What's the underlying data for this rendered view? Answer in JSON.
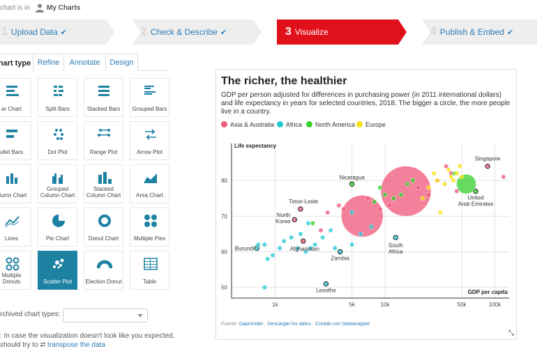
{
  "breadcrumb": {
    "prefix": "chart is in",
    "folder": "My Charts"
  },
  "steps": [
    {
      "num": "1",
      "label": "Upload Data",
      "done": "✔"
    },
    {
      "num": "2",
      "label": "Check & Describe",
      "done": "✔"
    },
    {
      "num": "3",
      "label": "Visualize"
    },
    {
      "num": "4",
      "label": "Publish & Embed",
      "done": "✔"
    }
  ],
  "tabs": [
    "Chart type",
    "Refine",
    "Annotate",
    "Design"
  ],
  "chart_types": [
    "Bar Chart",
    "Split Bars",
    "Stacked Bars",
    "Grouped Bars",
    "Bullet Bars",
    "Dot Plot",
    "Range Plot",
    "Arrow Plot",
    "Column Chart",
    "Grouped Column Chart",
    "Stacked Column Chart",
    "Area Chart",
    "Lines",
    "Pie Chart",
    "Donut Chart",
    "Multiple Pies",
    "Multiple Donuts",
    "Scatter Plot",
    "Election Donut",
    "Table"
  ],
  "tile_labels": [
    "ar Chart",
    "Split Bars",
    "Stacked Bars",
    "Grouped Bars",
    "ullet Bars",
    "Dot Plot",
    "Range Plot",
    "Arrow Plot",
    "olumn Chart",
    "Grouped\nColumn Chart",
    "Stacked\nColumn Chart",
    "Area Chart",
    "Lines",
    "Pie Chart",
    "Donut Chart",
    "Multiple Pies",
    "Multiple\nDonuts",
    "Scatter Plot",
    "Election Donut",
    "Table"
  ],
  "selected_chart_type": "Scatter Plot",
  "archived": {
    "label": "rchived chart types:",
    "value": ""
  },
  "hint": {
    "line1": ": In case the visualization doesn't look like you expected,",
    "line2_prefix": "should try to ",
    "link": "transpose the data"
  },
  "colors": {
    "accent": "#e1111b",
    "link": "#2a7bb6",
    "asia": "#f0577a",
    "africa": "#22c7d6",
    "namerica": "#34d02c",
    "europe": "#f5e30f"
  },
  "chart_data": {
    "type": "scatter",
    "title": "The richer, the healthier",
    "subtitle": "GDP per person adjusted for differences in purchasing power (in 2011 international dollars) and life expectancy in years for selected countries, 2018. The bigger a circle, the more people live in a country.",
    "xlabel": "GDP per capita",
    "ylabel": "Life expectancy",
    "xscale": "log",
    "xlim": [
      400,
      135000
    ],
    "ylim": [
      47,
      90
    ],
    "xticks": [
      1000,
      5000,
      10000,
      50000,
      100000
    ],
    "xtick_labels": [
      "1k",
      "5k",
      "10k",
      "50k",
      "100k"
    ],
    "yticks": [
      50,
      60,
      70,
      80
    ],
    "grid": true,
    "legend": "top-left",
    "series": [
      {
        "name": "Asia & Australia",
        "color": "#f0577a",
        "points": [
          {
            "label": "Timor-Leste",
            "x": 1700,
            "y": 72
          },
          {
            "label": "North Korea",
            "x": 1500,
            "y": 69
          },
          {
            "label": "Afghanistan",
            "x": 1800,
            "y": 63
          },
          {
            "label": "Singapore",
            "x": 86000,
            "y": 84
          },
          {
            "x": 6200,
            "y": 70,
            "size": 30
          },
          {
            "x": 15500,
            "y": 77,
            "size": 36
          },
          {
            "x": 11000,
            "y": 73
          },
          {
            "x": 3000,
            "y": 71
          },
          {
            "x": 4200,
            "y": 72
          },
          {
            "x": 3800,
            "y": 73
          },
          {
            "x": 2600,
            "y": 66
          },
          {
            "x": 7000,
            "y": 75
          },
          {
            "x": 9000,
            "y": 72
          },
          {
            "x": 12000,
            "y": 75
          },
          {
            "x": 20000,
            "y": 78
          },
          {
            "x": 30000,
            "y": 80
          },
          {
            "x": 36000,
            "y": 84
          },
          {
            "x": 40000,
            "y": 82
          },
          {
            "x": 25000,
            "y": 76
          },
          {
            "x": 45000,
            "y": 77
          },
          {
            "x": 120000,
            "y": 81
          }
        ]
      },
      {
        "name": "Africa",
        "color": "#22c7d6",
        "points": [
          {
            "label": "Burundi",
            "x": 680,
            "y": 61
          },
          {
            "label": "Zambia",
            "x": 3900,
            "y": 60
          },
          {
            "label": "Lesotho",
            "x": 2900,
            "y": 51
          },
          {
            "label": "South Africa",
            "x": 12500,
            "y": 64
          },
          {
            "x": 700,
            "y": 62
          },
          {
            "x": 800,
            "y": 62
          },
          {
            "x": 850,
            "y": 58
          },
          {
            "x": 950,
            "y": 59
          },
          {
            "x": 1100,
            "y": 61
          },
          {
            "x": 1200,
            "y": 63
          },
          {
            "x": 1400,
            "y": 64
          },
          {
            "x": 1600,
            "y": 61
          },
          {
            "x": 1900,
            "y": 60
          },
          {
            "x": 2100,
            "y": 61
          },
          {
            "x": 2300,
            "y": 62
          },
          {
            "x": 2700,
            "y": 64
          },
          {
            "x": 3200,
            "y": 66
          },
          {
            "x": 3500,
            "y": 61
          },
          {
            "x": 5000,
            "y": 62
          },
          {
            "x": 6000,
            "y": 65
          },
          {
            "x": 7500,
            "y": 67
          },
          {
            "x": 1700,
            "y": 65
          },
          {
            "x": 2000,
            "y": 68
          },
          {
            "x": 5000,
            "y": 71
          },
          {
            "x": 800,
            "y": 50
          }
        ]
      },
      {
        "name": "North America",
        "color": "#34d02c",
        "points": [
          {
            "label": "Nicaragua",
            "x": 5000,
            "y": 79
          },
          {
            "label": "United Arab Emirates",
            "x": 67000,
            "y": 77
          },
          {
            "x": 55000,
            "y": 79,
            "size": 14
          },
          {
            "x": 43000,
            "y": 82
          },
          {
            "x": 8000,
            "y": 74
          },
          {
            "x": 10000,
            "y": 76
          },
          {
            "x": 12000,
            "y": 75
          },
          {
            "x": 14000,
            "y": 76
          },
          {
            "x": 9000,
            "y": 78
          },
          {
            "x": 16000,
            "y": 79
          },
          {
            "x": 2200,
            "y": 68
          },
          {
            "x": 18000,
            "y": 80
          }
        ]
      },
      {
        "name": "Europe",
        "color": "#f5e30f",
        "points": [
          {
            "x": 40000,
            "y": 81
          },
          {
            "x": 45000,
            "y": 82
          },
          {
            "x": 50000,
            "y": 81
          },
          {
            "x": 35000,
            "y": 79
          },
          {
            "x": 30000,
            "y": 80
          },
          {
            "x": 25000,
            "y": 78
          },
          {
            "x": 32000,
            "y": 71
          },
          {
            "x": 22000,
            "y": 75
          },
          {
            "x": 38000,
            "y": 83
          },
          {
            "x": 28000,
            "y": 82
          },
          {
            "x": 42000,
            "y": 80
          },
          {
            "x": 48000,
            "y": 84
          }
        ]
      }
    ],
    "source_prefix": "Fuente:",
    "source_name": "Gapminder",
    "download": "Descargar los datos",
    "created": "Creado con Datawrapper"
  }
}
